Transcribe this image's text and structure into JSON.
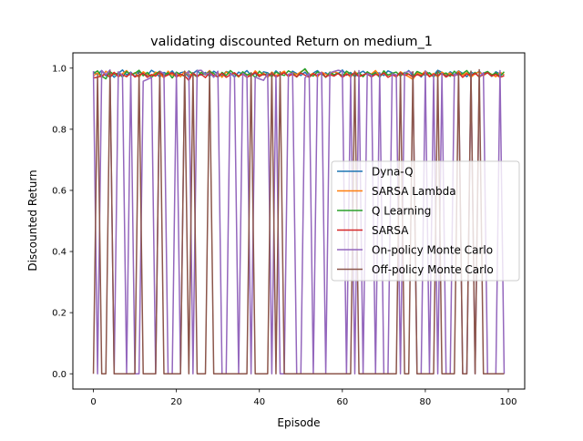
{
  "chart_data": {
    "type": "line",
    "title": "validating discounted Return on medium_1",
    "xlabel": "Episode",
    "ylabel": "Discounted Return",
    "xlim": [
      -4.95,
      103.95
    ],
    "ylim": [
      -0.05,
      1.05
    ],
    "xticks": [
      0,
      20,
      40,
      60,
      80,
      100
    ],
    "yticks": [
      0.0,
      0.2,
      0.4,
      0.6,
      0.8,
      1.0
    ],
    "xtick_labels": [
      "0",
      "20",
      "40",
      "60",
      "80",
      "100"
    ],
    "ytick_labels": [
      "0.0",
      "0.2",
      "0.4",
      "0.6",
      "0.8",
      "1.0"
    ],
    "grid": false,
    "legend_position": "center-right",
    "series": [
      {
        "name": "Dyna-Q",
        "color": "#1f77b4",
        "x": [
          0,
          1,
          2,
          3,
          4,
          5,
          6,
          7,
          8,
          9,
          10,
          11,
          12,
          13,
          14,
          15,
          16,
          17,
          18,
          19,
          20,
          21,
          22,
          23,
          24,
          25,
          26,
          27,
          28,
          29,
          30,
          31,
          32,
          33,
          34,
          35,
          36,
          37,
          38,
          39,
          40,
          41,
          42,
          43,
          44,
          45,
          46,
          47,
          48,
          49,
          50,
          51,
          52,
          53,
          54,
          55,
          56,
          57,
          58,
          59,
          60,
          61,
          62,
          63,
          64,
          65,
          66,
          67,
          68,
          69,
          70,
          71,
          72,
          73,
          74,
          75,
          76,
          77,
          78,
          79,
          80,
          81,
          82,
          83,
          84,
          85,
          86,
          87,
          88,
          89,
          90,
          91,
          92,
          93,
          94,
          95,
          96,
          97,
          98,
          99
        ],
        "y": [
          0.988,
          0.979,
          0.992,
          0.975,
          0.986,
          0.97,
          0.983,
          0.994,
          0.978,
          0.987,
          0.972,
          0.989,
          0.981,
          0.976,
          0.993,
          0.984,
          0.971,
          0.986,
          0.979,
          0.991,
          0.974,
          0.985,
          0.988,
          0.97,
          0.982,
          0.993,
          0.977,
          0.986,
          0.973,
          0.99,
          0.981,
          0.975,
          0.989,
          0.984,
          0.971,
          0.987,
          0.98,
          0.992,
          0.976,
          0.983,
          0.972,
          0.988,
          0.985,
          0.974,
          0.991,
          0.979,
          0.986,
          0.973,
          0.99,
          0.982,
          0.976,
          0.987,
          0.971,
          0.984,
          0.992,
          0.978,
          0.985,
          0.974,
          0.989,
          0.981,
          0.994,
          0.977,
          0.986,
          0.972,
          0.983,
          0.99,
          0.979,
          0.974,
          0.988,
          0.982,
          0.976,
          0.991,
          0.985,
          0.973,
          0.987,
          0.98,
          0.992,
          0.975,
          0.984,
          0.971,
          0.989,
          0.982,
          0.977,
          0.993,
          0.986,
          0.974,
          0.988,
          0.979,
          0.991,
          0.983,
          0.972,
          0.987,
          0.98,
          0.99,
          0.976,
          0.985,
          0.973,
          0.988,
          0.981,
          0.978
        ]
      },
      {
        "name": "SARSA Lambda",
        "color": "#ff7f0e",
        "x": [
          0,
          1,
          2,
          3,
          4,
          5,
          6,
          7,
          8,
          9,
          10,
          11,
          12,
          13,
          14,
          15,
          16,
          17,
          18,
          19,
          20,
          21,
          22,
          23,
          24,
          25,
          26,
          27,
          28,
          29,
          30,
          31,
          32,
          33,
          34,
          35,
          36,
          37,
          38,
          39,
          40,
          41,
          42,
          43,
          44,
          45,
          46,
          47,
          48,
          49,
          50,
          51,
          52,
          53,
          54,
          55,
          56,
          57,
          58,
          59,
          60,
          61,
          62,
          63,
          64,
          65,
          66,
          67,
          68,
          69,
          70,
          71,
          72,
          73,
          74,
          75,
          76,
          77,
          78,
          79,
          80,
          81,
          82,
          83,
          84,
          85,
          86,
          87,
          88,
          89,
          90,
          91,
          92,
          93,
          94,
          95,
          96,
          97,
          98,
          99
        ],
        "y": [
          0.975,
          0.984,
          0.969,
          0.99,
          0.978,
          0.986,
          0.971,
          0.982,
          0.992,
          0.976,
          0.985,
          0.97,
          0.988,
          0.979,
          0.973,
          0.987,
          0.981,
          0.968,
          0.99,
          0.977,
          0.984,
          0.972,
          0.989,
          0.976,
          0.983,
          0.97,
          0.987,
          0.979,
          0.992,
          0.974,
          0.985,
          0.97,
          0.988,
          0.977,
          0.983,
          0.971,
          0.986,
          0.979,
          0.973,
          0.991,
          0.978,
          0.984,
          0.969,
          0.987,
          0.976,
          0.982,
          0.99,
          0.972,
          0.985,
          0.979,
          0.988,
          0.996,
          0.977,
          0.983,
          0.971,
          0.987,
          0.98,
          0.975,
          0.989,
          0.983,
          0.976,
          0.984,
          0.97,
          0.988,
          0.978,
          0.973,
          0.986,
          0.981,
          0.992,
          0.974,
          0.985,
          0.977,
          0.983,
          0.97,
          0.988,
          0.979,
          0.972,
          0.963,
          0.985,
          0.978,
          0.99,
          0.974,
          0.983,
          0.971,
          0.987,
          0.979,
          0.984,
          0.973,
          0.99,
          0.977,
          0.985,
          0.97,
          0.982,
          0.988,
          0.975,
          0.987,
          0.98,
          0.972,
          0.986,
          0.979
        ]
      },
      {
        "name": "Q Learning",
        "color": "#2ca02c",
        "x": [
          0,
          1,
          2,
          3,
          4,
          5,
          6,
          7,
          8,
          9,
          10,
          11,
          12,
          13,
          14,
          15,
          16,
          17,
          18,
          19,
          20,
          21,
          22,
          23,
          24,
          25,
          26,
          27,
          28,
          29,
          30,
          31,
          32,
          33,
          34,
          35,
          36,
          37,
          38,
          39,
          40,
          41,
          42,
          43,
          44,
          45,
          46,
          47,
          48,
          49,
          50,
          51,
          52,
          53,
          54,
          55,
          56,
          57,
          58,
          59,
          60,
          61,
          62,
          63,
          64,
          65,
          66,
          67,
          68,
          69,
          70,
          71,
          72,
          73,
          74,
          75,
          76,
          77,
          78,
          79,
          80,
          81,
          82,
          83,
          84,
          85,
          86,
          87,
          88,
          89,
          90,
          91,
          92,
          93,
          94,
          95,
          96,
          97,
          98,
          99
        ],
        "y": [
          0.982,
          0.991,
          0.974,
          0.965,
          0.988,
          0.979,
          0.984,
          0.971,
          0.989,
          0.978,
          0.983,
          0.993,
          0.975,
          0.986,
          0.97,
          0.981,
          0.99,
          0.976,
          0.985,
          0.968,
          0.987,
          0.979,
          0.974,
          0.991,
          0.98,
          0.972,
          0.986,
          0.978,
          0.989,
          0.983,
          0.97,
          0.986,
          0.976,
          0.992,
          0.981,
          0.973,
          0.988,
          0.977,
          0.984,
          0.969,
          0.99,
          0.978,
          0.983,
          0.972,
          0.987,
          0.98,
          0.976,
          0.991,
          0.984,
          0.971,
          0.986,
          0.998,
          0.979,
          0.974,
          0.988,
          0.982,
          0.97,
          0.987,
          0.978,
          0.984,
          0.973,
          0.99,
          0.981,
          0.976,
          0.986,
          0.972,
          0.988,
          0.979,
          0.984,
          0.97,
          0.991,
          0.977,
          0.983,
          0.987,
          0.974,
          0.986,
          0.98,
          0.972,
          0.989,
          0.983,
          0.976,
          0.985,
          0.971,
          0.988,
          0.979,
          0.984,
          0.973,
          0.99,
          0.978,
          0.982,
          0.992,
          0.975,
          0.986,
          0.97,
          0.983,
          0.989,
          0.977,
          0.985,
          0.973,
          0.988
        ]
      },
      {
        "name": "SARSA",
        "color": "#d62728",
        "x": [
          0,
          1,
          2,
          3,
          4,
          5,
          6,
          7,
          8,
          9,
          10,
          11,
          12,
          13,
          14,
          15,
          16,
          17,
          18,
          19,
          20,
          21,
          22,
          23,
          24,
          25,
          26,
          27,
          28,
          29,
          30,
          31,
          32,
          33,
          34,
          35,
          36,
          37,
          38,
          39,
          40,
          41,
          42,
          43,
          44,
          45,
          46,
          47,
          48,
          49,
          50,
          51,
          52,
          53,
          54,
          55,
          56,
          57,
          58,
          59,
          60,
          61,
          62,
          63,
          64,
          65,
          66,
          67,
          68,
          69,
          70,
          71,
          72,
          73,
          74,
          75,
          76,
          77,
          78,
          79,
          80,
          81,
          82,
          83,
          84,
          85,
          86,
          87,
          88,
          89,
          90,
          91,
          92,
          93,
          94,
          95,
          96,
          97,
          98,
          99
        ],
        "y": [
          0.968,
          0.97,
          0.975,
          0.981,
          0.97,
          0.986,
          0.974,
          0.979,
          0.972,
          0.984,
          0.971,
          0.977,
          0.983,
          0.97,
          0.979,
          0.974,
          0.988,
          0.972,
          0.978,
          0.985,
          0.971,
          0.98,
          0.975,
          0.96,
          0.984,
          0.973,
          0.98,
          0.969,
          0.986,
          0.976,
          0.972,
          0.983,
          0.97,
          0.978,
          0.985,
          0.974,
          0.981,
          0.97,
          0.977,
          0.986,
          0.973,
          0.98,
          0.975,
          0.983,
          0.971,
          0.978,
          0.985,
          0.974,
          0.98,
          0.972,
          0.984,
          0.977,
          0.97,
          0.982,
          0.975,
          0.986,
          0.971,
          0.979,
          0.974,
          0.983,
          0.97,
          0.98,
          0.976,
          0.985,
          0.972,
          0.978,
          0.983,
          0.971,
          0.98,
          0.975,
          0.984,
          0.97,
          0.978,
          0.973,
          0.985,
          0.976,
          0.981,
          0.97,
          0.979,
          0.974,
          0.986,
          0.972,
          0.98,
          0.976,
          0.983,
          0.971,
          0.979,
          0.974,
          0.985,
          0.97,
          0.981,
          0.976,
          0.983,
          0.972,
          0.979,
          0.985,
          0.974,
          0.98,
          0.97,
          0.975
        ]
      },
      {
        "name": "On-policy Monte Carlo",
        "color": "#9467bd",
        "x": [
          0,
          1,
          2,
          3,
          4,
          5,
          6,
          7,
          8,
          9,
          10,
          11,
          12,
          13,
          14,
          15,
          16,
          17,
          18,
          19,
          20,
          21,
          22,
          23,
          24,
          25,
          26,
          27,
          28,
          29,
          30,
          31,
          32,
          33,
          34,
          35,
          36,
          37,
          38,
          39,
          40,
          41,
          42,
          43,
          44,
          45,
          46,
          47,
          48,
          49,
          50,
          51,
          52,
          53,
          54,
          55,
          56,
          57,
          58,
          59,
          60,
          61,
          62,
          63,
          64,
          65,
          66,
          67,
          68,
          69,
          70,
          71,
          72,
          73,
          74,
          75,
          76,
          77,
          78,
          79,
          80,
          81,
          82,
          83,
          84,
          85,
          86,
          87,
          88,
          89,
          90,
          91,
          92,
          93,
          94,
          95,
          96,
          97,
          98,
          99
        ],
        "y": [
          0.99,
          0.0,
          0.992,
          0.979,
          0.994,
          0.0,
          0.988,
          0.976,
          0.0,
          0.985,
          0.0,
          0.0,
          0.957,
          0.963,
          0.97,
          0.0,
          0.99,
          0.982,
          0.0,
          0.0,
          0.984,
          0.0,
          0.978,
          0.99,
          0.0,
          0.992,
          0.993,
          0.979,
          0.985,
          0.97,
          0.99,
          0.0,
          0.0,
          0.981,
          0.975,
          0.0,
          0.983,
          0.972,
          0.0,
          0.971,
          0.965,
          0.96,
          0.982,
          0.0,
          0.976,
          0.0,
          0.0,
          0.98,
          0.984,
          0.0,
          0.0,
          0.968,
          0.983,
          0.0,
          0.98,
          0.986,
          0.0,
          0.985,
          0.989,
          0.993,
          0.99,
          0.0,
          0.976,
          0.0,
          0.992,
          0.0,
          0.982,
          0.977,
          0.0,
          0.985,
          0.0,
          0.0,
          0.981,
          0.978,
          0.0,
          0.985,
          0.989,
          0.984,
          0.0,
          0.0,
          0.991,
          0.0,
          0.978,
          0.0,
          0.983,
          0.0,
          0.0,
          0.98,
          0.976,
          0.0,
          0.0,
          0.988,
          0.0,
          0.972,
          0.985,
          0.0,
          0.0,
          0.0,
          0.992,
          0.0
        ]
      },
      {
        "name": "Off-policy Monte Carlo",
        "color": "#8c564b",
        "x": [
          0,
          1,
          2,
          3,
          4,
          5,
          6,
          7,
          8,
          9,
          10,
          11,
          12,
          13,
          14,
          15,
          16,
          17,
          18,
          19,
          20,
          21,
          22,
          23,
          24,
          25,
          26,
          27,
          28,
          29,
          30,
          31,
          32,
          33,
          34,
          35,
          36,
          37,
          38,
          39,
          40,
          41,
          42,
          43,
          44,
          45,
          46,
          47,
          48,
          49,
          50,
          51,
          52,
          53,
          54,
          55,
          56,
          57,
          58,
          59,
          60,
          61,
          62,
          63,
          64,
          65,
          66,
          67,
          68,
          69,
          70,
          71,
          72,
          73,
          74,
          75,
          76,
          77,
          78,
          79,
          80,
          81,
          82,
          83,
          84,
          85,
          86,
          87,
          88,
          89,
          90,
          91,
          92,
          93,
          94,
          95,
          96,
          97,
          98,
          99
        ],
        "y": [
          0.0,
          0.975,
          0.0,
          0.0,
          0.99,
          0.0,
          0.0,
          0.0,
          0.0,
          0.0,
          0.0,
          0.985,
          0.0,
          0.0,
          0.0,
          0.0,
          0.988,
          0.0,
          0.0,
          0.0,
          0.0,
          0.0,
          0.99,
          0.0,
          0.985,
          0.0,
          0.0,
          0.0,
          0.99,
          0.0,
          0.0,
          0.0,
          0.0,
          0.0,
          0.0,
          0.0,
          0.0,
          0.0,
          0.985,
          0.0,
          0.0,
          0.0,
          0.0,
          0.985,
          0.0,
          0.988,
          0.0,
          0.0,
          0.0,
          0.0,
          0.0,
          0.0,
          0.0,
          0.0,
          0.0,
          0.0,
          0.0,
          0.0,
          0.0,
          0.0,
          0.0,
          0.0,
          0.0,
          0.99,
          0.0,
          0.0,
          0.0,
          0.0,
          0.0,
          0.0,
          0.0,
          0.0,
          0.0,
          0.0,
          0.985,
          0.0,
          0.0,
          0.988,
          0.0,
          0.0,
          0.0,
          0.0,
          0.0,
          0.99,
          0.0,
          0.0,
          0.0,
          0.0,
          0.985,
          0.0,
          0.0,
          0.99,
          0.0,
          0.995,
          0.0,
          0.0,
          0.0,
          0.0,
          0.0,
          0.0
        ]
      }
    ]
  }
}
